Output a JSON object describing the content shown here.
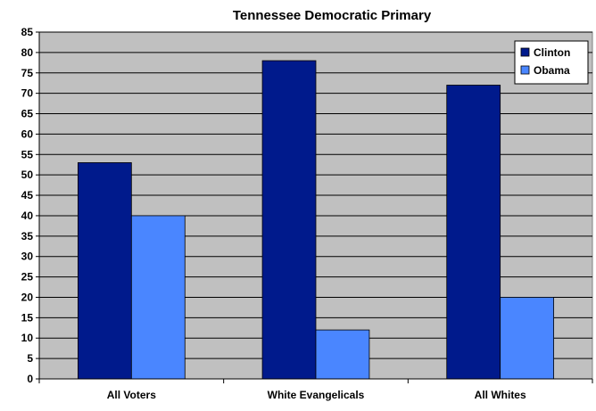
{
  "chart_data": {
    "type": "bar",
    "title": "Tennessee Democratic Primary",
    "xlabel": "",
    "ylabel": "",
    "categories": [
      "All Voters",
      "White Evangelicals",
      "All Whites"
    ],
    "series": [
      {
        "name": "Clinton",
        "values": [
          53,
          78,
          72
        ],
        "color": "#001A8C"
      },
      {
        "name": "Obama",
        "values": [
          40,
          12,
          20
        ],
        "color": "#4A86FF"
      }
    ],
    "ylim": [
      0,
      85
    ],
    "ytick_step": 5,
    "grid": true,
    "legend_position": "top-right",
    "plot_background": "#C0C0C0"
  }
}
